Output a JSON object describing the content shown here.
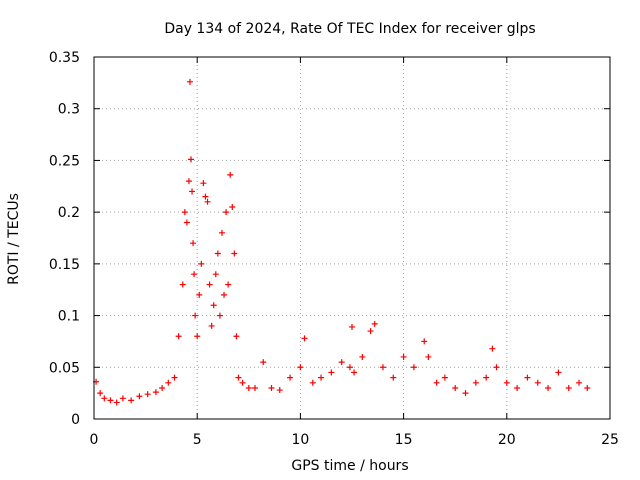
{
  "chart_data": {
    "type": "scatter",
    "title": "Day 134 of 2024, Rate Of TEC Index for receiver glps",
    "xlabel": "GPS time / hours",
    "ylabel": "ROTI / TECUs",
    "xlim": [
      0,
      25
    ],
    "ylim": [
      0,
      0.35
    ],
    "x_ticks": [
      0,
      5,
      10,
      15,
      20,
      25
    ],
    "x_tick_labels": [
      "0",
      "5",
      "10",
      "15",
      "20",
      "25"
    ],
    "y_ticks": [
      0,
      0.05,
      0.1,
      0.15,
      0.2,
      0.25,
      0.3,
      0.35
    ],
    "y_tick_labels": [
      "0",
      "0.05",
      "0.1",
      "0.15",
      "0.2",
      "0.25",
      "0.3",
      "0.35"
    ],
    "grid": true,
    "marker": "+",
    "marker_color": "#ff0000",
    "series": [
      {
        "name": "ROTI",
        "x": [
          0.1,
          0.3,
          0.5,
          0.8,
          1.1,
          1.4,
          1.8,
          2.2,
          2.6,
          3.0,
          3.3,
          3.6,
          3.9,
          4.1,
          4.3,
          4.4,
          4.5,
          4.6,
          4.65,
          4.7,
          4.75,
          4.8,
          4.85,
          4.9,
          5.0,
          5.1,
          5.2,
          5.3,
          5.4,
          5.5,
          5.6,
          5.7,
          5.8,
          5.9,
          6.0,
          6.1,
          6.2,
          6.3,
          6.4,
          6.5,
          6.6,
          6.7,
          6.8,
          6.9,
          7.0,
          7.2,
          7.5,
          7.8,
          8.2,
          8.6,
          9.0,
          9.5,
          10.0,
          10.2,
          10.6,
          11.0,
          11.5,
          12.0,
          12.4,
          12.5,
          12.6,
          13.0,
          13.4,
          13.6,
          14.0,
          14.5,
          15.0,
          15.5,
          16.0,
          16.2,
          16.6,
          17.0,
          17.5,
          18.0,
          18.5,
          19.0,
          19.3,
          19.5,
          20.0,
          20.5,
          21.0,
          21.5,
          22.0,
          22.5,
          23.0,
          23.5,
          23.9
        ],
        "y": [
          0.036,
          0.025,
          0.02,
          0.018,
          0.016,
          0.02,
          0.018,
          0.022,
          0.024,
          0.026,
          0.03,
          0.035,
          0.04,
          0.08,
          0.13,
          0.2,
          0.19,
          0.23,
          0.326,
          0.251,
          0.22,
          0.17,
          0.14,
          0.1,
          0.08,
          0.12,
          0.15,
          0.228,
          0.215,
          0.21,
          0.13,
          0.09,
          0.11,
          0.14,
          0.16,
          0.1,
          0.18,
          0.12,
          0.2,
          0.13,
          0.236,
          0.205,
          0.16,
          0.08,
          0.04,
          0.035,
          0.03,
          0.03,
          0.055,
          0.03,
          0.028,
          0.04,
          0.05,
          0.078,
          0.035,
          0.04,
          0.045,
          0.055,
          0.05,
          0.089,
          0.045,
          0.06,
          0.085,
          0.092,
          0.05,
          0.04,
          0.06,
          0.05,
          0.075,
          0.06,
          0.035,
          0.04,
          0.03,
          0.025,
          0.035,
          0.04,
          0.068,
          0.05,
          0.035,
          0.03,
          0.04,
          0.035,
          0.03,
          0.045,
          0.03,
          0.035,
          0.03
        ]
      }
    ]
  }
}
